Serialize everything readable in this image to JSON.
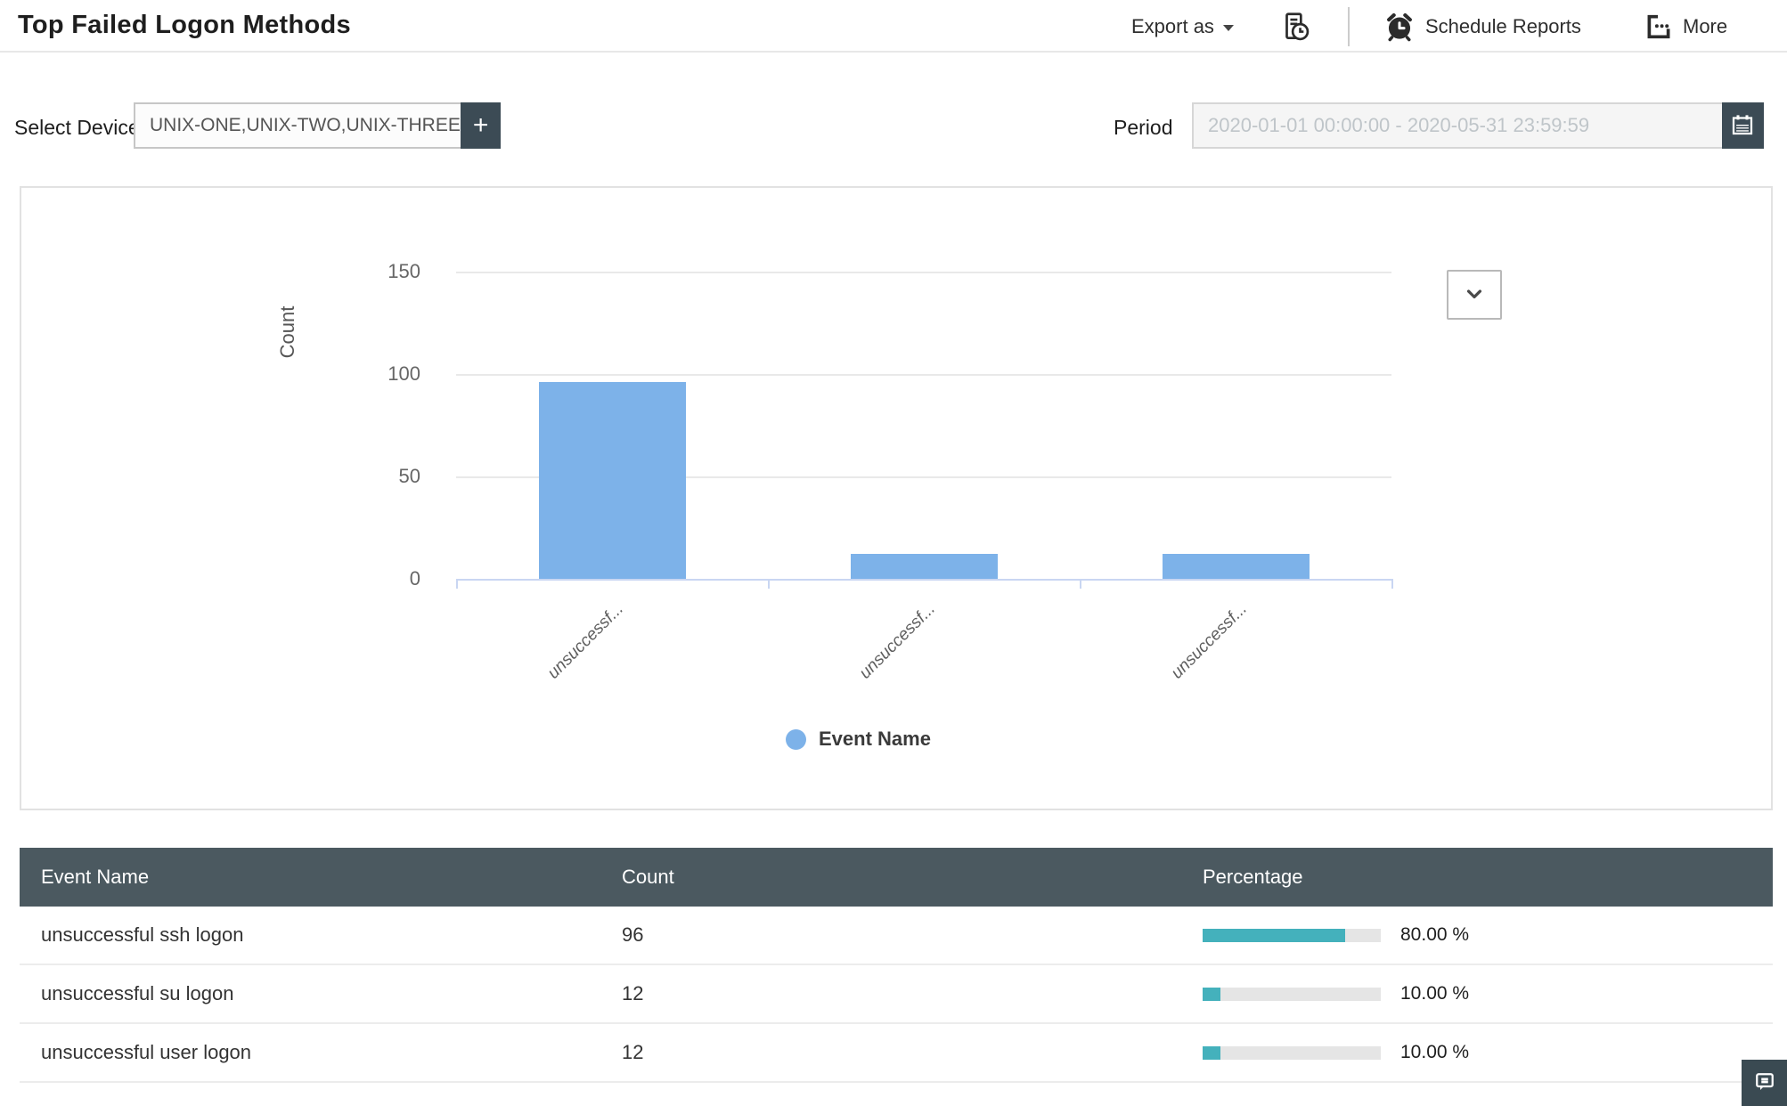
{
  "header": {
    "title": "Top Failed Logon Methods",
    "export_as_label": "Export as",
    "schedule_reports_label": "Schedule Reports",
    "more_label": "More"
  },
  "filters": {
    "select_device_label": "Select Device",
    "select_device_value": "UNIX-ONE,UNIX-TWO,UNIX-THREE,SYN",
    "add_device_button_label": "+",
    "period_label": "Period",
    "period_value": "2020-01-01 00:00:00 - 2020-05-31 23:59:59"
  },
  "chart_data": {
    "type": "bar",
    "categories": [
      "unsuccessful ssh logon",
      "unsuccessful su logon",
      "unsuccessful user logon"
    ],
    "category_display_labels": [
      "unsuccessf...",
      "unsuccessf...",
      "unsuccessf..."
    ],
    "values": [
      96,
      12,
      12
    ],
    "series_name": "Event Name",
    "ylabel": "Count",
    "yticks": [
      0,
      50,
      100,
      150
    ],
    "ylim": [
      0,
      150
    ],
    "legend": {
      "label": "Event Name",
      "position": "bottom"
    },
    "grid": true,
    "bar_color": "#7db2e9"
  },
  "table": {
    "columns": [
      "Event Name",
      "Count",
      "Percentage"
    ],
    "rows": [
      {
        "event": "unsuccessful ssh logon",
        "count": "96",
        "percentage": 80,
        "percentage_label": "80.00 %"
      },
      {
        "event": "unsuccessful su logon",
        "count": "12",
        "percentage": 10,
        "percentage_label": "10.00 %"
      },
      {
        "event": "unsuccessful user logon",
        "count": "12",
        "percentage": 10,
        "percentage_label": "10.00 %"
      }
    ]
  },
  "colors": {
    "slate_header": "#4b5960",
    "slate_button": "#3c4b55",
    "bar_blue": "#7db2e9",
    "progress_teal": "#44b1bc",
    "progress_track": "#e5e5e5",
    "axis_line": "#c9d6f2"
  }
}
